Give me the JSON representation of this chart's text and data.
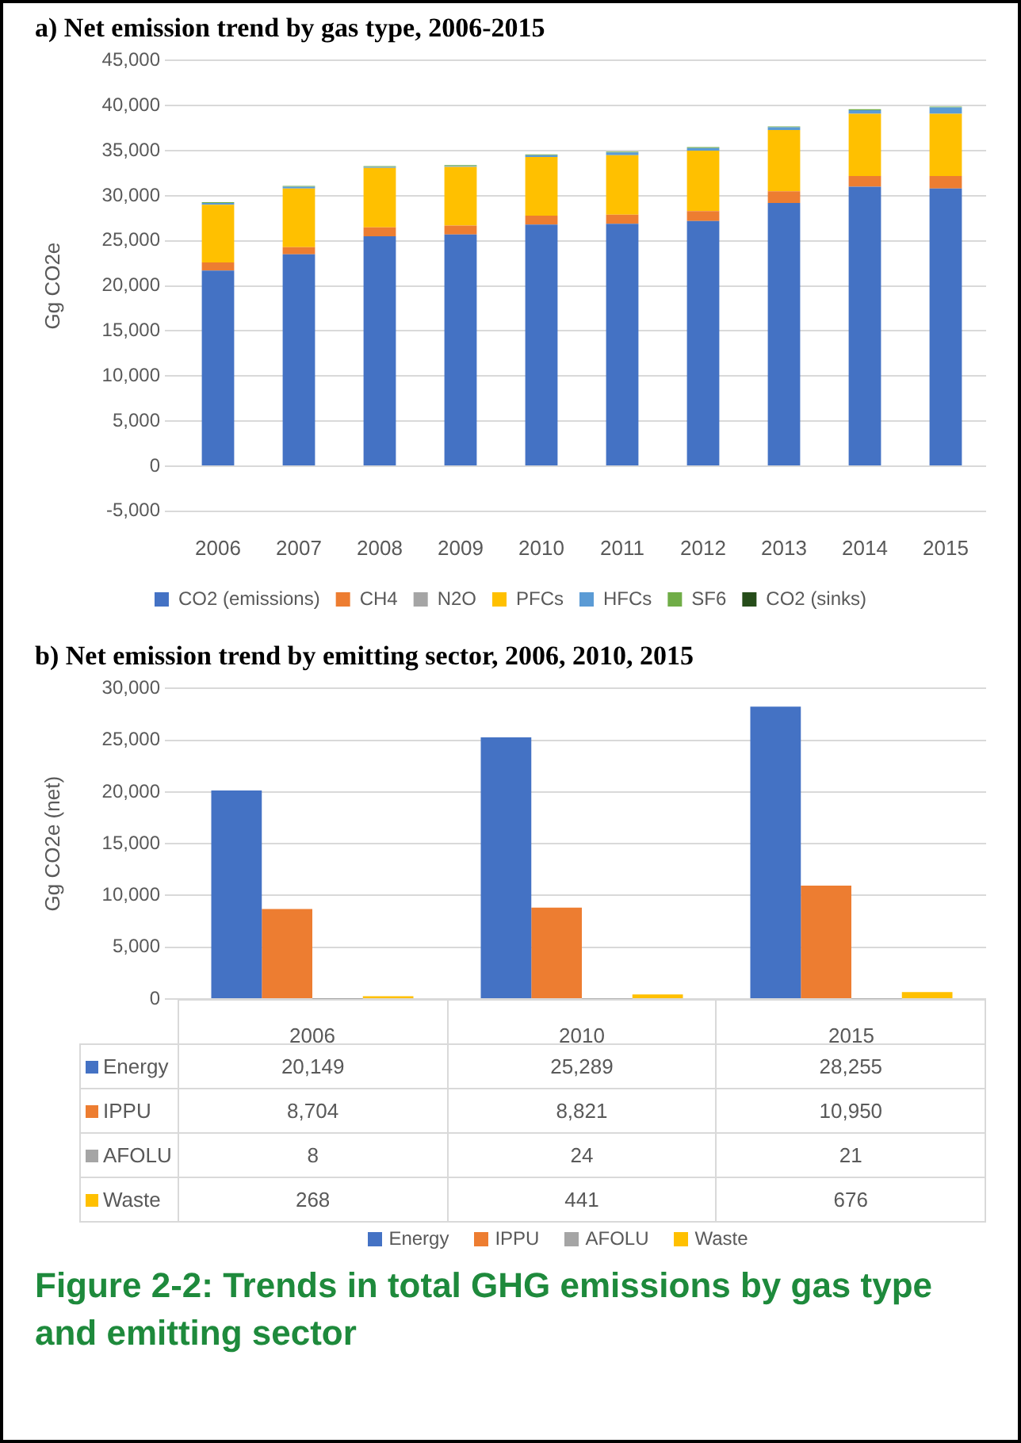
{
  "chart_data": [
    {
      "type": "bar",
      "title": "a) Net emission trend by gas type, 2006-2015",
      "ylabel": "Gg CO2e",
      "stacked": true,
      "categories": [
        "2006",
        "2007",
        "2008",
        "2009",
        "2010",
        "2011",
        "2012",
        "2013",
        "2014",
        "2015"
      ],
      "series": [
        {
          "name": "CO2 (emissions)",
          "color": "#4472c4",
          "values": [
            21700,
            23500,
            25500,
            25700,
            26800,
            26900,
            27200,
            29200,
            31000,
            30800
          ]
        },
        {
          "name": "CH4",
          "color": "#ed7d31",
          "values": [
            900,
            800,
            1000,
            1000,
            1000,
            1000,
            1100,
            1300,
            1200,
            1400
          ]
        },
        {
          "name": "N2O",
          "color": "#a5a5a5",
          "values": [
            0,
            0,
            0,
            0,
            0,
            0,
            0,
            0,
            0,
            0
          ]
        },
        {
          "name": "PFCs",
          "color": "#ffc000",
          "values": [
            6400,
            6500,
            6600,
            6500,
            6500,
            6600,
            6700,
            6800,
            6900,
            6900
          ]
        },
        {
          "name": "HFCs",
          "color": "#5b9bd5",
          "values": [
            200,
            200,
            100,
            100,
            200,
            300,
            300,
            300,
            400,
            700
          ]
        },
        {
          "name": "SF6",
          "color": "#70ad47",
          "values": [
            100,
            100,
            100,
            100,
            100,
            100,
            100,
            100,
            100,
            100
          ]
        },
        {
          "name": "CO2 (sinks)",
          "color": "#264d1a",
          "values": [
            0,
            0,
            0,
            0,
            0,
            0,
            0,
            0,
            0,
            0
          ]
        }
      ],
      "ylim": [
        -5000,
        45000
      ],
      "yticks": [
        {
          "value": -5000,
          "label": "-5,000"
        },
        0,
        {
          "value": 5000,
          "label": "5,000"
        },
        {
          "value": 10000,
          "label": "10,000"
        },
        {
          "value": 15000,
          "label": "15,000"
        },
        {
          "value": 20000,
          "label": "20,000"
        },
        {
          "value": 25000,
          "label": "25,000"
        },
        {
          "value": 30000,
          "label": "30,000"
        },
        {
          "value": 35000,
          "label": "35,000"
        },
        {
          "value": 40000,
          "label": "40,000"
        },
        {
          "value": 45000,
          "label": "45,000"
        }
      ],
      "grid": "y",
      "legend": "bottom"
    },
    {
      "type": "bar",
      "title": "b) Net emission trend by emitting sector, 2006, 2010, 2015",
      "ylabel": "Gg CO2e (net)",
      "categories": [
        "2006",
        "2010",
        "2015"
      ],
      "series": [
        {
          "name": "Energy",
          "color": "#4472c4",
          "values": [
            20149,
            25289,
            28255
          ],
          "value_labels": [
            "20,149",
            "25,289",
            "28,255"
          ]
        },
        {
          "name": "IPPU",
          "color": "#ed7d31",
          "values": [
            8704,
            8821,
            10950
          ],
          "value_labels": [
            "8,704",
            "8,821",
            "10,950"
          ]
        },
        {
          "name": "AFOLU",
          "color": "#a5a5a5",
          "values": [
            8,
            24,
            21
          ],
          "value_labels": [
            "8",
            "24",
            "21"
          ]
        },
        {
          "name": "Waste",
          "color": "#ffc000",
          "values": [
            268,
            441,
            676
          ],
          "value_labels": [
            "268",
            "441",
            "676"
          ]
        }
      ],
      "ylim": [
        0,
        30000
      ],
      "yticks": [
        0,
        {
          "value": 5000,
          "label": "5,000"
        },
        {
          "value": 10000,
          "label": "10,000"
        },
        {
          "value": 15000,
          "label": "15,000"
        },
        {
          "value": 20000,
          "label": "20,000"
        },
        {
          "value": 25000,
          "label": "25,000"
        },
        {
          "value": 30000,
          "label": "30,000"
        }
      ],
      "grid": "y",
      "legend": "bottom",
      "annotations": [
        "Figure 2-2: Trends in total GHG emissions by gas type and emitting sector"
      ]
    }
  ]
}
